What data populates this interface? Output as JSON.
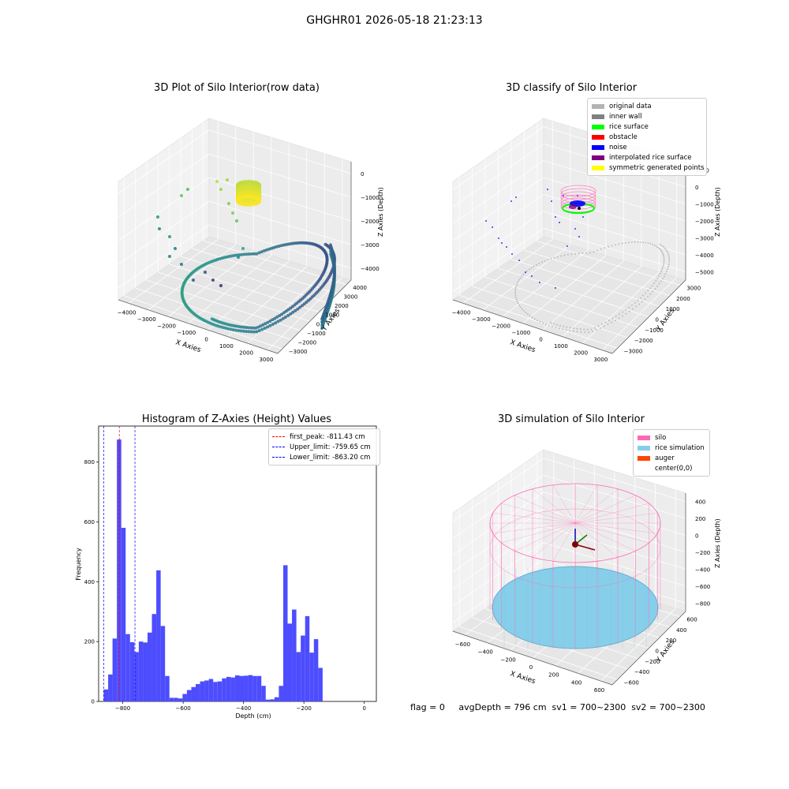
{
  "suptitle": "GHGHR01 2026-05-18 21:23:13",
  "status_text": "flag = 0     avgDepth = 796 cm  sv1 = 700~2300  sv2 = 700~2300",
  "colors": {
    "original": "#b3b3b3",
    "inner_wall": "#808080",
    "rice_surface": "#00ff00",
    "obstacle": "#ff0000",
    "noise": "#0000ff",
    "interpolated": "#800080",
    "symmetric": "#ffff00",
    "hist_bar": "#4d4dff",
    "silo": "#ff69b4",
    "rice_sim": "#87ceeb",
    "auger": "#ff4500"
  },
  "chart_data": [
    {
      "type": "scatter",
      "panel": "top-left",
      "title": "3D Plot of Silo Interior(row data)",
      "xlabel": "X Axies",
      "ylabel": "Y Axies",
      "zlabel": "Z Axies (Depth)",
      "xticks": [
        "−4000",
        "−3000",
        "−2000",
        "−1000",
        "0",
        "1000",
        "2000",
        "3000"
      ],
      "yticks": [
        "4000",
        "3000",
        "2000",
        "1000",
        "0",
        "−1000",
        "−2000",
        "−3000"
      ],
      "zticks": [
        "0",
        "−1000",
        "−2000",
        "−3000",
        "−4000"
      ],
      "grid": true
    },
    {
      "type": "scatter",
      "panel": "top-right",
      "title": "3D classify of Silo Interior",
      "xlabel": "X Axies",
      "ylabel": "Y Axies",
      "zlabel": "Z Axies (Depth)",
      "xticks": [
        "−4000",
        "−3000",
        "−2000",
        "−1000",
        "0",
        "1000",
        "2000",
        "3000"
      ],
      "yticks": [
        "3000",
        "2000",
        "1000",
        "0",
        "−1000",
        "−2000",
        "−3000"
      ],
      "zticks": [
        "1000",
        "0",
        "−1000",
        "−2000",
        "−3000",
        "−4000",
        "−5000"
      ],
      "legend": [
        "original data",
        "inner wall",
        "rice surface",
        "obstacle",
        "noise",
        "interpolated rice surface",
        "symmetric generated points"
      ],
      "legend_loc": "top-right",
      "grid": true
    },
    {
      "type": "bar",
      "panel": "bottom-left",
      "title": "Histogram of Z-Axies (Height) Values",
      "xlabel": "Depth (cm)",
      "ylabel": "Frequency",
      "xlim": [
        -880,
        40
      ],
      "ylim": [
        0,
        920
      ],
      "xticks": [
        -800,
        -600,
        -400,
        -200,
        0
      ],
      "yticks": [
        0,
        200,
        400,
        600,
        800
      ],
      "bin_start": -863,
      "bin_width": 14.5,
      "values": [
        40,
        90,
        210,
        875,
        580,
        225,
        198,
        165,
        200,
        197,
        230,
        292,
        438,
        252,
        85,
        12,
        12,
        10,
        25,
        38,
        48,
        58,
        67,
        70,
        75,
        65,
        67,
        77,
        82,
        80,
        87,
        85,
        86,
        88,
        85,
        85,
        52,
        6,
        7,
        14,
        52,
        455,
        260,
        307,
        165,
        220,
        285,
        163,
        208,
        112
      ],
      "vlines": [
        {
          "label": "first_peak: -811.43 cm",
          "x": -811.43,
          "color": "#ff0000"
        },
        {
          "label": "Upper_limit: -759.65 cm",
          "x": -759.65,
          "color": "#0000ff"
        },
        {
          "label": "Lower_limit: -863.20 cm",
          "x": -863.2,
          "color": "#0000ff"
        }
      ],
      "legend_loc": "top-right",
      "grid": false
    },
    {
      "type": "scatter",
      "panel": "bottom-right",
      "title": "3D simulation of Silo Interior",
      "xlabel": "X Axies",
      "ylabel": "Y Axies",
      "zlabel": "Z Axies (Depth)",
      "xticks": [
        "−600",
        "−400",
        "−200",
        "0",
        "200",
        "400",
        "600"
      ],
      "yticks": [
        "600",
        "400",
        "200",
        "0",
        "−200",
        "−400",
        "−600"
      ],
      "zticks": [
        "400",
        "200",
        "0",
        "−200",
        "−400",
        "−600",
        "−800"
      ],
      "legend": [
        "silo",
        "rice simulation",
        "auger",
        "center(0,0)"
      ],
      "legend_loc": "top-right",
      "grid": true
    }
  ]
}
